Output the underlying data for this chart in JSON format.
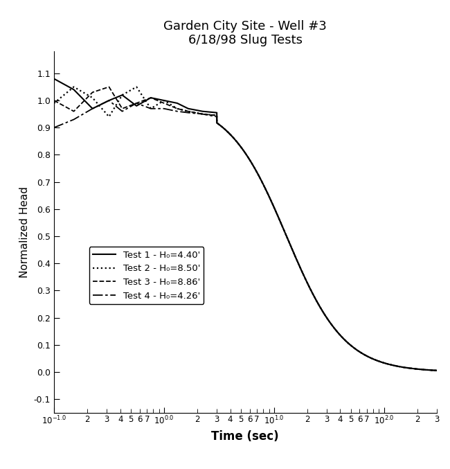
{
  "title_line1": "Garden City Site - Well #3",
  "title_line2": "6/18/98 Slug Tests",
  "xlabel": "Time (sec)",
  "ylabel": "Normalized Head",
  "xlim": [
    0.1,
    300
  ],
  "ylim": [
    -0.15,
    1.18
  ],
  "yticks": [
    -0.1,
    0.0,
    0.1,
    0.2,
    0.3,
    0.4,
    0.5,
    0.6,
    0.7,
    0.8,
    0.9,
    1.0,
    1.1
  ],
  "legend_labels": [
    "Test 1 - H₀=4.40'",
    "Test 2 - H₀=8.50'",
    "Test 3 - H₀=8.86'",
    "Test 4 - H₀=4.26'"
  ],
  "background_color": "white",
  "sigmoid_t_mid": 13.0,
  "sigmoid_steepness": 3.8
}
